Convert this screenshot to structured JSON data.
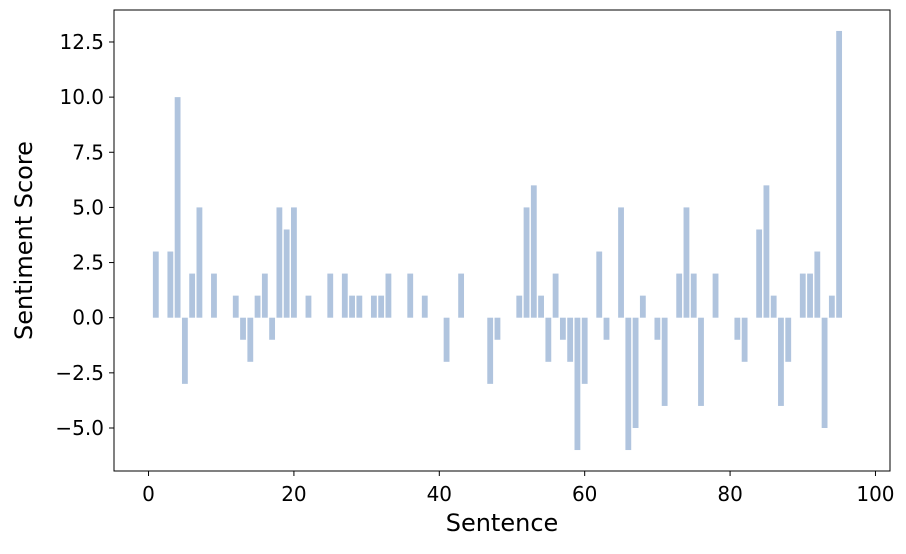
{
  "chart_data": {
    "type": "bar",
    "title": "",
    "xlabel": "Sentence",
    "ylabel": "Sentiment Score",
    "xlim": [
      -4.75,
      102
    ],
    "ylim": [
      -6.95,
      13.95
    ],
    "xticks": [
      0,
      20,
      40,
      60,
      80,
      100
    ],
    "xtick_labels": [
      "0",
      "20",
      "40",
      "60",
      "80",
      "100"
    ],
    "yticks": [
      -5.0,
      -2.5,
      0.0,
      2.5,
      5.0,
      7.5,
      10.0,
      12.5
    ],
    "ytick_labels": [
      "−5.0",
      "−2.5",
      "0.0",
      "2.5",
      "5.0",
      "7.5",
      "10.0",
      "12.5"
    ],
    "grid": false,
    "bar_color": "#b0c4de",
    "x": [
      1,
      3,
      4,
      5,
      6,
      7,
      9,
      12,
      13,
      14,
      15,
      16,
      17,
      18,
      19,
      20,
      22,
      25,
      27,
      28,
      29,
      31,
      32,
      33,
      36,
      38,
      41,
      43,
      47,
      48,
      51,
      52,
      53,
      54,
      55,
      56,
      57,
      58,
      59,
      60,
      62,
      63,
      65,
      66,
      67,
      68,
      70,
      71,
      73,
      74,
      75,
      76,
      78,
      81,
      82,
      84,
      85,
      86,
      87,
      88,
      90,
      91,
      92,
      93,
      94,
      95
    ],
    "values": [
      3,
      3,
      10,
      -3,
      2,
      5,
      2,
      1,
      -1,
      -2,
      1,
      2,
      -1,
      5,
      4,
      5,
      1,
      2,
      2,
      1,
      1,
      1,
      1,
      2,
      2,
      1,
      -2,
      2,
      -3,
      -1,
      1,
      5,
      6,
      1,
      -2,
      2,
      -1,
      -2,
      -6,
      -3,
      3,
      -1,
      5,
      -6,
      -5,
      1,
      -1,
      -4,
      2,
      5,
      2,
      -4,
      2,
      -1,
      -2,
      4,
      6,
      1,
      -4,
      -2,
      2,
      2,
      3,
      -5,
      1,
      13
    ]
  }
}
